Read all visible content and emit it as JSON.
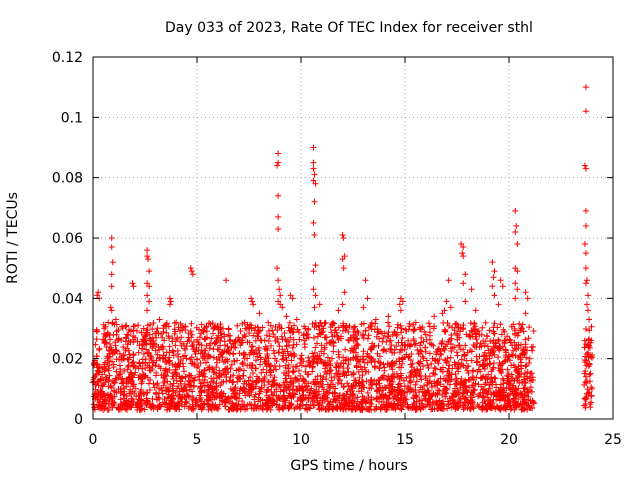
{
  "chart_data": {
    "type": "scatter",
    "title": "Day 033 of 2023, Rate Of TEC Index for receiver sthl",
    "xlabel": "GPS time / hours",
    "ylabel": "ROTI / TECUs",
    "xlim": [
      0,
      25
    ],
    "ylim": [
      0,
      0.12
    ],
    "xticks": [
      0,
      5,
      10,
      15,
      20,
      25
    ],
    "xtick_labels": [
      "0",
      "5",
      "10",
      "15",
      "20",
      "25"
    ],
    "yticks": [
      0,
      0.02,
      0.04,
      0.06,
      0.08,
      0.1,
      0.12
    ],
    "ytick_labels": [
      "0",
      "0.02",
      "0.04",
      "0.06",
      "0.08",
      "0.1",
      "0.12"
    ],
    "grid": true,
    "marker": "+",
    "color": "#ff0000",
    "series": [
      {
        "name": "ROTI",
        "dense_band": {
          "segments": [
            [
              0.0,
              21.2
            ],
            [
              23.6,
              24.0
            ]
          ],
          "y_range": [
            0.003,
            0.032
          ]
        },
        "points": [
          [
            0.2,
            0.041
          ],
          [
            0.3,
            0.04
          ],
          [
            0.25,
            0.042
          ],
          [
            0.9,
            0.06
          ],
          [
            0.9,
            0.057
          ],
          [
            0.95,
            0.052
          ],
          [
            0.9,
            0.048
          ],
          [
            0.9,
            0.044
          ],
          [
            0.85,
            0.037
          ],
          [
            0.9,
            0.036
          ],
          [
            1.1,
            0.033
          ],
          [
            1.6,
            0.031
          ],
          [
            2.6,
            0.056
          ],
          [
            2.6,
            0.054
          ],
          [
            2.65,
            0.053
          ],
          [
            2.7,
            0.049
          ],
          [
            2.6,
            0.045
          ],
          [
            2.7,
            0.044
          ],
          [
            2.6,
            0.041
          ],
          [
            2.7,
            0.039
          ],
          [
            2.6,
            0.036
          ],
          [
            1.9,
            0.045
          ],
          [
            1.95,
            0.044
          ],
          [
            3.7,
            0.04
          ],
          [
            3.75,
            0.039
          ],
          [
            3.7,
            0.038
          ],
          [
            4.7,
            0.05
          ],
          [
            4.75,
            0.049
          ],
          [
            4.8,
            0.048
          ],
          [
            3.2,
            0.033
          ],
          [
            4.0,
            0.032
          ],
          [
            6.4,
            0.046
          ],
          [
            7.6,
            0.04
          ],
          [
            7.65,
            0.039
          ],
          [
            7.7,
            0.038
          ],
          [
            8.0,
            0.035
          ],
          [
            8.9,
            0.088
          ],
          [
            8.9,
            0.085
          ],
          [
            8.85,
            0.084
          ],
          [
            8.9,
            0.074
          ],
          [
            8.9,
            0.067
          ],
          [
            8.9,
            0.063
          ],
          [
            8.85,
            0.05
          ],
          [
            8.9,
            0.046
          ],
          [
            8.95,
            0.043
          ],
          [
            9.0,
            0.041
          ],
          [
            8.9,
            0.039
          ],
          [
            9.0,
            0.038
          ],
          [
            9.1,
            0.037
          ],
          [
            9.5,
            0.041
          ],
          [
            9.6,
            0.04
          ],
          [
            9.3,
            0.034
          ],
          [
            9.8,
            0.033
          ],
          [
            10.6,
            0.09
          ],
          [
            10.6,
            0.085
          ],
          [
            10.6,
            0.083
          ],
          [
            10.65,
            0.081
          ],
          [
            10.6,
            0.079
          ],
          [
            10.7,
            0.078
          ],
          [
            10.65,
            0.072
          ],
          [
            10.6,
            0.065
          ],
          [
            10.65,
            0.061
          ],
          [
            10.7,
            0.051
          ],
          [
            10.6,
            0.049
          ],
          [
            10.6,
            0.043
          ],
          [
            10.7,
            0.041
          ],
          [
            10.65,
            0.037
          ],
          [
            10.9,
            0.038
          ],
          [
            12.0,
            0.061
          ],
          [
            12.05,
            0.06
          ],
          [
            12.1,
            0.054
          ],
          [
            12.0,
            0.053
          ],
          [
            12.05,
            0.05
          ],
          [
            12.1,
            0.042
          ],
          [
            12.0,
            0.038
          ],
          [
            11.8,
            0.036
          ],
          [
            13.1,
            0.046
          ],
          [
            13.2,
            0.04
          ],
          [
            13.0,
            0.037
          ],
          [
            14.8,
            0.04
          ],
          [
            14.9,
            0.039
          ],
          [
            14.75,
            0.038
          ],
          [
            14.8,
            0.036
          ],
          [
            14.2,
            0.034
          ],
          [
            13.6,
            0.033
          ],
          [
            16.4,
            0.034
          ],
          [
            16.9,
            0.036
          ],
          [
            16.8,
            0.035
          ],
          [
            17.1,
            0.046
          ],
          [
            17.0,
            0.039
          ],
          [
            17.2,
            0.037
          ],
          [
            17.7,
            0.058
          ],
          [
            17.8,
            0.057
          ],
          [
            17.75,
            0.055
          ],
          [
            17.8,
            0.054
          ],
          [
            17.9,
            0.048
          ],
          [
            17.8,
            0.045
          ],
          [
            17.9,
            0.039
          ],
          [
            18.2,
            0.043
          ],
          [
            18.4,
            0.036
          ],
          [
            19.2,
            0.052
          ],
          [
            19.3,
            0.049
          ],
          [
            19.25,
            0.047
          ],
          [
            19.2,
            0.044
          ],
          [
            19.3,
            0.041
          ],
          [
            19.6,
            0.046
          ],
          [
            19.7,
            0.044
          ],
          [
            19.5,
            0.038
          ],
          [
            20.3,
            0.069
          ],
          [
            20.35,
            0.064
          ],
          [
            20.3,
            0.062
          ],
          [
            20.4,
            0.058
          ],
          [
            20.3,
            0.05
          ],
          [
            20.4,
            0.049
          ],
          [
            20.3,
            0.045
          ],
          [
            20.4,
            0.043
          ],
          [
            20.3,
            0.04
          ],
          [
            20.8,
            0.042
          ],
          [
            20.9,
            0.04
          ],
          [
            20.8,
            0.035
          ],
          [
            23.7,
            0.11
          ],
          [
            23.7,
            0.102
          ],
          [
            23.65,
            0.084
          ],
          [
            23.7,
            0.083
          ],
          [
            23.7,
            0.069
          ],
          [
            23.7,
            0.064
          ],
          [
            23.65,
            0.058
          ],
          [
            23.7,
            0.055
          ],
          [
            23.7,
            0.05
          ],
          [
            23.75,
            0.046
          ],
          [
            23.7,
            0.045
          ],
          [
            23.8,
            0.041
          ],
          [
            23.75,
            0.038
          ],
          [
            23.8,
            0.036
          ],
          [
            23.85,
            0.033
          ]
        ]
      }
    ]
  }
}
